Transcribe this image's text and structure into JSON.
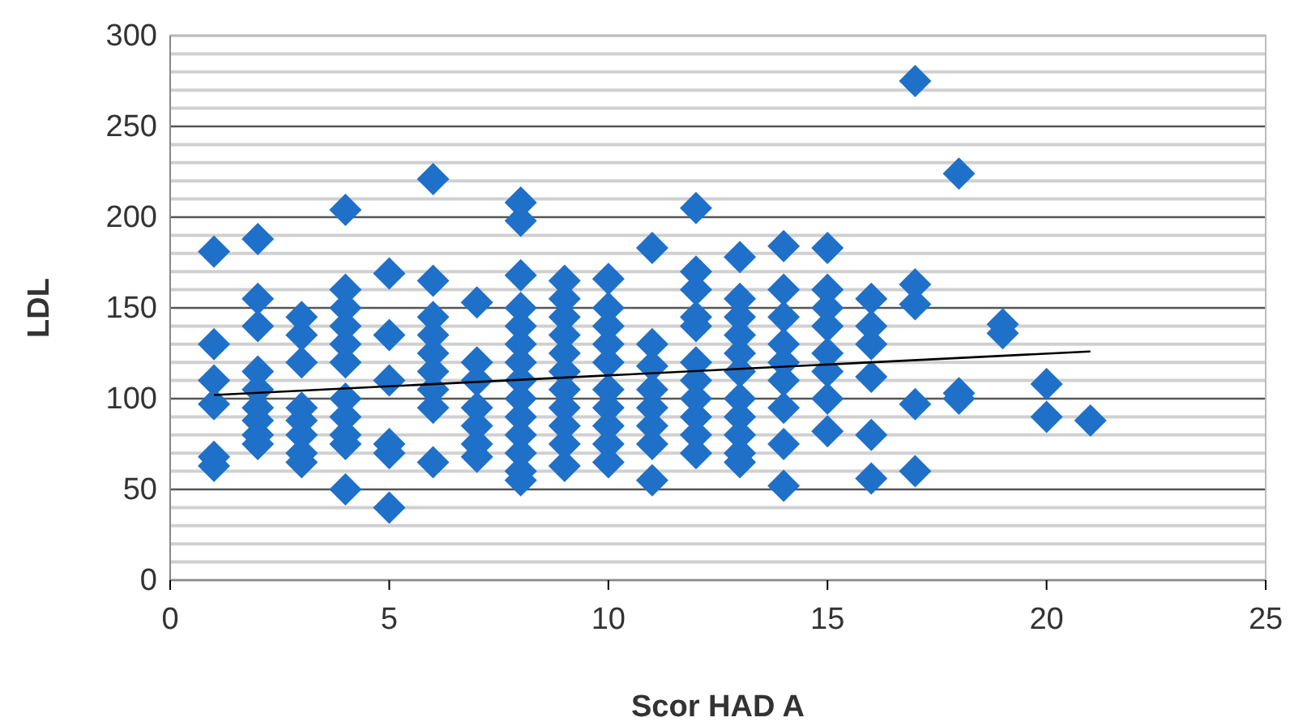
{
  "chart_data": {
    "type": "scatter",
    "xlabel": "Scor HAD A",
    "ylabel": "LDL",
    "xlim": [
      0,
      25
    ],
    "ylim": [
      0,
      300
    ],
    "xticks": [
      0,
      5,
      10,
      15,
      20,
      25
    ],
    "yticks": [
      0,
      {
        "value": 10,
        "label": null
      },
      {
        "value": 20,
        "label": null
      },
      {
        "value": 30,
        "label": null
      },
      {
        "value": 40,
        "label": null
      },
      50,
      {
        "value": 60,
        "label": null
      },
      {
        "value": 70,
        "label": null
      },
      {
        "value": 80,
        "label": null
      },
      {
        "value": 90,
        "label": null
      },
      100,
      {
        "value": 110,
        "label": null
      },
      {
        "value": 120,
        "label": null
      },
      {
        "value": 130,
        "label": null
      },
      {
        "value": 140,
        "label": null
      },
      150,
      {
        "value": 160,
        "label": null
      },
      {
        "value": 170,
        "label": null
      },
      {
        "value": 180,
        "label": null
      },
      {
        "value": 190,
        "label": null
      },
      200,
      {
        "value": 210,
        "label": null
      },
      {
        "value": 220,
        "label": null
      },
      {
        "value": 230,
        "label": null
      },
      {
        "value": 240,
        "label": null
      },
      250,
      {
        "value": 260,
        "label": null
      },
      {
        "value": 270,
        "label": null
      },
      {
        "value": 280,
        "label": null
      },
      {
        "value": 290,
        "label": null
      },
      300
    ],
    "grid": "y",
    "series": [
      {
        "marker": "diamond",
        "color": "#1f70c8",
        "x": [
          1,
          1,
          1,
          1,
          1,
          1,
          2,
          2,
          2,
          2,
          2,
          2,
          2,
          2,
          2,
          3,
          3,
          3,
          3,
          3,
          3,
          3,
          3,
          4,
          4,
          4,
          4,
          4,
          4,
          4,
          4,
          4,
          4,
          4,
          5,
          5,
          5,
          5,
          5,
          5,
          6,
          6,
          6,
          6,
          6,
          6,
          6,
          6,
          6,
          7,
          7,
          7,
          7,
          7,
          7,
          7,
          8,
          8,
          8,
          8,
          8,
          8,
          8,
          8,
          8,
          8,
          8,
          8,
          8,
          8,
          9,
          9,
          9,
          9,
          9,
          9,
          9,
          9,
          9,
          9,
          9,
          10,
          10,
          10,
          10,
          10,
          10,
          10,
          10,
          10,
          10,
          11,
          11,
          11,
          11,
          11,
          11,
          11,
          11,
          12,
          12,
          12,
          12,
          12,
          12,
          12,
          12,
          12,
          12,
          12,
          13,
          13,
          13,
          13,
          13,
          13,
          13,
          13,
          13,
          13,
          13,
          14,
          14,
          14,
          14,
          14,
          14,
          14,
          14,
          14,
          15,
          15,
          15,
          15,
          15,
          15,
          15,
          15,
          16,
          16,
          16,
          16,
          16,
          16,
          17,
          17,
          17,
          17,
          17,
          18,
          18,
          18,
          19,
          19,
          20,
          20,
          21
        ],
        "values": [
          181,
          130,
          110,
          97,
          68,
          63,
          188,
          155,
          140,
          115,
          105,
          95,
          88,
          80,
          75,
          145,
          135,
          120,
          95,
          88,
          80,
          70,
          65,
          204,
          160,
          150,
          140,
          130,
          120,
          100,
          90,
          80,
          75,
          50,
          169,
          135,
          110,
          75,
          70,
          40,
          221,
          165,
          145,
          135,
          125,
          115,
          105,
          95,
          65,
          153,
          120,
          110,
          95,
          85,
          75,
          68,
          208,
          198,
          168,
          150,
          140,
          130,
          120,
          110,
          100,
          90,
          80,
          70,
          60,
          55,
          165,
          155,
          145,
          135,
          125,
          115,
          105,
          95,
          85,
          75,
          63,
          166,
          150,
          140,
          130,
          120,
          105,
          95,
          85,
          75,
          65,
          183,
          130,
          118,
          105,
          95,
          85,
          75,
          55,
          205,
          170,
          160,
          145,
          140,
          120,
          110,
          100,
          90,
          80,
          70,
          178,
          155,
          145,
          135,
          125,
          115,
          100,
          90,
          80,
          70,
          65,
          184,
          160,
          145,
          130,
          120,
          110,
          95,
          75,
          52,
          183,
          160,
          150,
          140,
          125,
          115,
          100,
          82,
          155,
          140,
          130,
          112,
          80,
          56,
          275,
          163,
          152,
          97,
          60,
          224,
          103,
          100,
          141,
          136,
          108,
          90,
          88
        ]
      },
      {
        "type": "line",
        "color": "#000000",
        "x": [
          1,
          21
        ],
        "values": [
          102,
          126
        ]
      }
    ]
  }
}
